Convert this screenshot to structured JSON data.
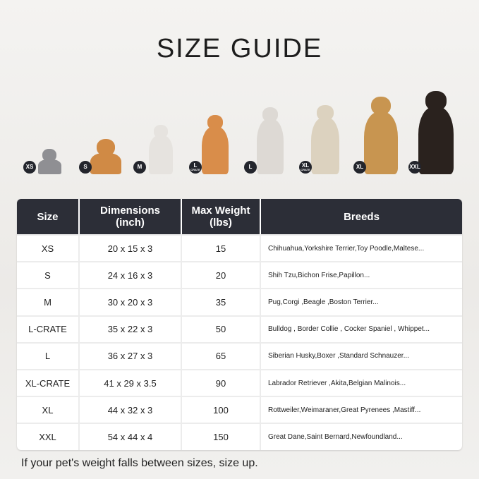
{
  "title": "SIZE GUIDE",
  "badges": [
    {
      "label": "XS"
    },
    {
      "label": "S"
    },
    {
      "label": "M"
    },
    {
      "label": "L",
      "sub": "CRATE"
    },
    {
      "label": "L"
    },
    {
      "label": "XL",
      "sub": "CRATE"
    },
    {
      "label": "XL"
    },
    {
      "label": "XXL"
    }
  ],
  "table": {
    "headers": [
      "Size",
      "Dimensions\n(inch)",
      "Max Weight\n(lbs)",
      "Breeds"
    ],
    "rows": [
      [
        "XS",
        "20 x 15 x 3",
        "15",
        "Chihuahua,Yorkshire Terrier,Toy Poodle,Maltese..."
      ],
      [
        "S",
        "24 x 16 x 3",
        "20",
        "Shih Tzu,Bichon Frise,Papillon..."
      ],
      [
        "M",
        "30 x 20 x 3",
        "35",
        "Pug,Corgi ,Beagle ,Boston Terrier..."
      ],
      [
        "L-CRATE",
        "35 x 22 x 3",
        "50",
        "Bulldog , Border Collie , Cocker Spaniel , Whippet..."
      ],
      [
        "L",
        "36 x 27 x 3",
        "65",
        "Siberian Husky,Boxer ,Standard Schnauzer..."
      ],
      [
        "XL-CRATE",
        "41 x 29 x 3.5",
        "90",
        "Labrador Retriever ,Akita,Belgian Malinois..."
      ],
      [
        "XL",
        "44 x 32 x 3",
        "100",
        "Rottweiler,Weimaraner,Great Pyrenees ,Mastiff..."
      ],
      [
        "XXL",
        "54 x 44 x 4",
        "150",
        "Great Dane,Saint Bernard,Newfoundland..."
      ]
    ]
  },
  "footer": "If your pet's weight falls between sizes, size up."
}
